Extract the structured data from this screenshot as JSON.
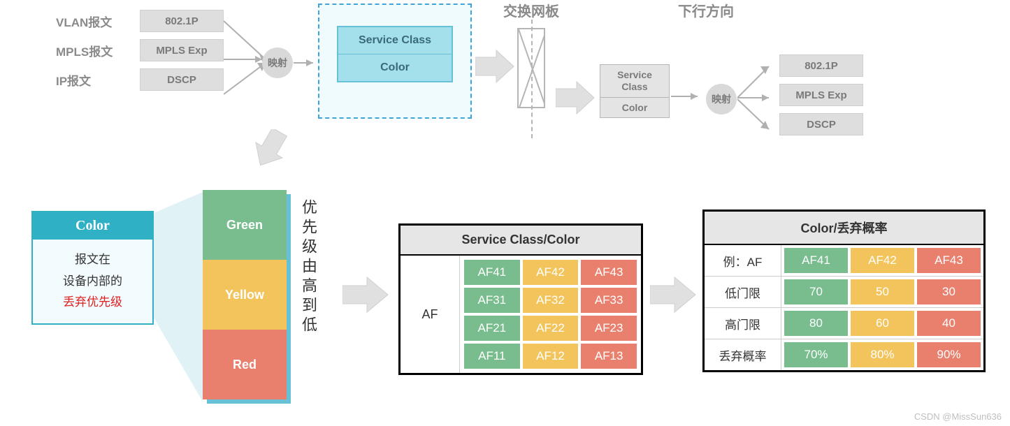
{
  "colors": {
    "green": "#79bd8f",
    "yellow": "#f3c45c",
    "red": "#e9806e",
    "gray_box": "#dedede",
    "teal": "#2fb0c5"
  },
  "top": {
    "packets": [
      {
        "label": "VLAN报文",
        "box": "802.1P"
      },
      {
        "label": "MPLS报文",
        "box": "MPLS Exp"
      },
      {
        "label": "IP报文",
        "box": "DSCP"
      }
    ],
    "map_label": "映射",
    "sc_box": {
      "row1": "Service Class",
      "row2": "Color"
    },
    "swap_label": "交换网板",
    "down_label": "下行方向",
    "right_sc": {
      "row1": "Service\nClass",
      "row2": "Color"
    },
    "right_boxes": [
      "802.1P",
      "MPLS Exp",
      "DSCP"
    ]
  },
  "color_card": {
    "title": "Color",
    "line1": "报文在",
    "line2": "设备内部的",
    "line3": "丢弃优先级"
  },
  "stack": {
    "items": [
      {
        "label": "Green",
        "color": "#79bd8f"
      },
      {
        "label": "Yellow",
        "color": "#f3c45c"
      },
      {
        "label": "Red",
        "color": "#e9806e"
      }
    ],
    "side_text": "优先级由高到低"
  },
  "af_table": {
    "title": "Service Class/Color",
    "left_label": "AF",
    "rows": [
      [
        {
          "t": "AF41",
          "c": "#79bd8f"
        },
        {
          "t": "AF42",
          "c": "#f3c45c"
        },
        {
          "t": "AF43",
          "c": "#e9806e"
        }
      ],
      [
        {
          "t": "AF31",
          "c": "#79bd8f"
        },
        {
          "t": "AF32",
          "c": "#f3c45c"
        },
        {
          "t": "AF33",
          "c": "#e9806e"
        }
      ],
      [
        {
          "t": "AF21",
          "c": "#79bd8f"
        },
        {
          "t": "AF22",
          "c": "#f3c45c"
        },
        {
          "t": "AF23",
          "c": "#e9806e"
        }
      ],
      [
        {
          "t": "AF11",
          "c": "#79bd8f"
        },
        {
          "t": "AF12",
          "c": "#f3c45c"
        },
        {
          "t": "AF13",
          "c": "#e9806e"
        }
      ]
    ]
  },
  "drop_table": {
    "title": "Color/丢弃概率",
    "rows": [
      {
        "label": "例：AF",
        "cells": [
          {
            "t": "AF41",
            "c": "#79bd8f"
          },
          {
            "t": "AF42",
            "c": "#f3c45c"
          },
          {
            "t": "AF43",
            "c": "#e9806e"
          }
        ]
      },
      {
        "label": "低门限",
        "cells": [
          {
            "t": "70",
            "c": "#79bd8f"
          },
          {
            "t": "50",
            "c": "#f3c45c"
          },
          {
            "t": "30",
            "c": "#e9806e"
          }
        ]
      },
      {
        "label": "高门限",
        "cells": [
          {
            "t": "80",
            "c": "#79bd8f"
          },
          {
            "t": "60",
            "c": "#f3c45c"
          },
          {
            "t": "40",
            "c": "#e9806e"
          }
        ]
      },
      {
        "label": "丢弃概率",
        "cells": [
          {
            "t": "70%",
            "c": "#79bd8f"
          },
          {
            "t": "80%",
            "c": "#f3c45c"
          },
          {
            "t": "90%",
            "c": "#e9806e"
          }
        ]
      }
    ]
  },
  "watermark": "CSDN @MissSun636"
}
